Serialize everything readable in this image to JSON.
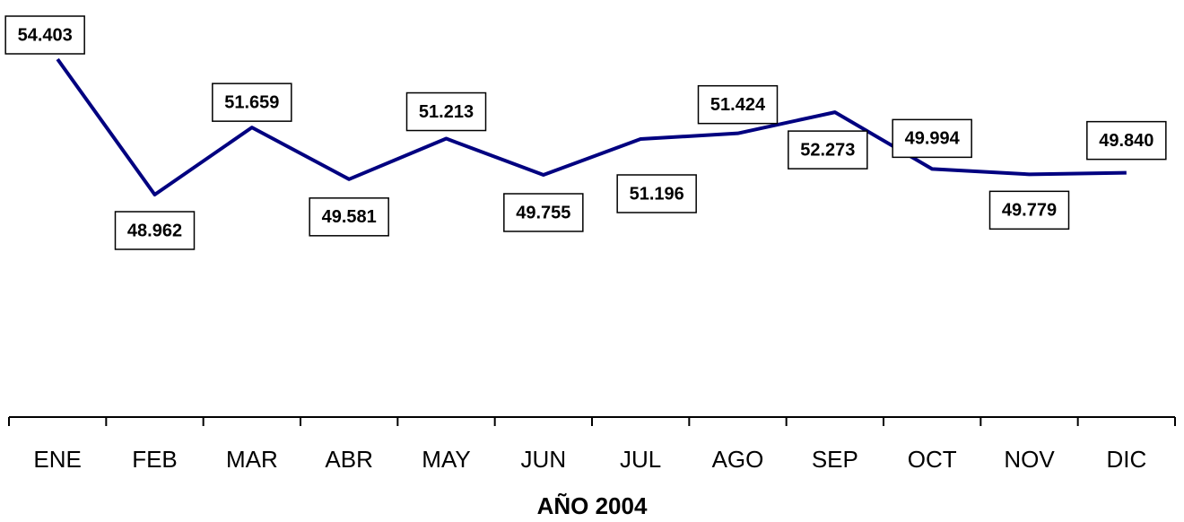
{
  "chart_data": {
    "type": "line",
    "x_label": "AÑO 2004",
    "categories": [
      "ENE",
      "FEB",
      "MAR",
      "ABR",
      "MAY",
      "JUN",
      "JUL",
      "AGO",
      "SEP",
      "OCT",
      "NOV",
      "DIC"
    ],
    "series": [
      {
        "color": "#000080",
        "values": [
          54403,
          48962,
          51659,
          49581,
          51213,
          49755,
          51196,
          51424,
          52273,
          49994,
          49779,
          49840
        ],
        "value_labels": [
          "54.403",
          "48.962",
          "51.659",
          "49.581",
          "51.213",
          "49.755",
          "51.196",
          "51.424",
          "52.273",
          "49.994",
          "49.779",
          "49.840"
        ]
      }
    ]
  }
}
